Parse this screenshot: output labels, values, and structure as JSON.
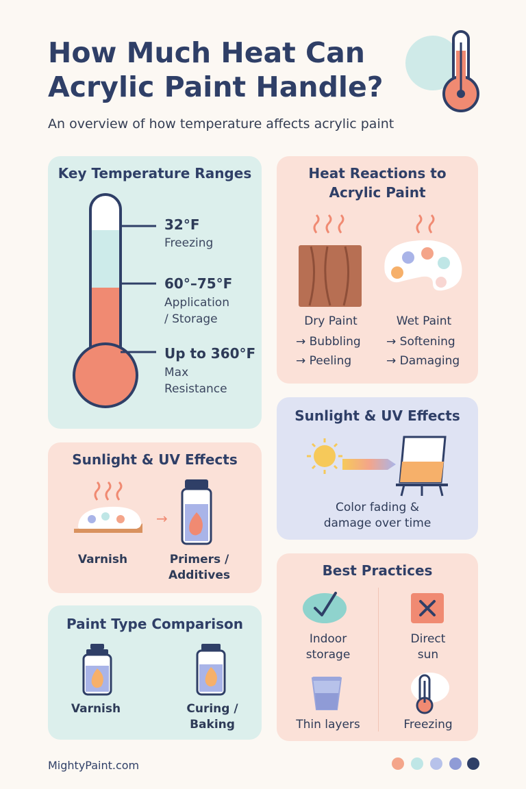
{
  "header": {
    "title_line1": "How Much Heat Can",
    "title_line2": "Acrylic Paint Handle?",
    "subtitle": "An overview of how temperature affects acrylic paint"
  },
  "ranges": {
    "title": "Key Temperature Ranges",
    "items": [
      {
        "value": "32°F",
        "desc": "Freezing"
      },
      {
        "value": "60°–75°F",
        "desc1": "Application",
        "desc2": "/ Storage"
      },
      {
        "value": "Up to 360°F",
        "desc1": "Max",
        "desc2": "Resistance"
      }
    ]
  },
  "reactions": {
    "title1": "Heat Reactions to",
    "title2": "Acrylic Paint",
    "dry": {
      "label": "Dry Paint",
      "effects": [
        "→ Bubbling",
        "→ Peeling"
      ]
    },
    "wet": {
      "label": "Wet Paint",
      "effects": [
        "→ Softening",
        "→ Damaging"
      ]
    }
  },
  "uv_left": {
    "title": "Sunlight & UV Effects",
    "item1": "Varnish",
    "item2_1": "Primers /",
    "item2_2": "Additives",
    "arrow": "→"
  },
  "uv_right": {
    "title": "Sunlight & UV Effects",
    "caption1": "Color fading &",
    "caption2": "damage over time"
  },
  "comparison": {
    "title": "Paint Type Comparison",
    "item1": "Varnish",
    "item2_1": "Curing /",
    "item2_2": "Baking"
  },
  "practices": {
    "title": "Best Practices",
    "items": [
      {
        "l1": "Indoor",
        "l2": "storage",
        "icon": "check-icon"
      },
      {
        "l1": "Direct",
        "l2": "sun",
        "icon": "x-icon"
      },
      {
        "l1": "Thin layers",
        "icon": "cup-icon"
      },
      {
        "l1": "Freezing",
        "icon": "thermometer-icon"
      }
    ]
  },
  "footer": {
    "site": "MightyPaint.com",
    "dot_colors": [
      "#f4a58a",
      "#bfe6e6",
      "#b7c2ea",
      "#8f9bd6",
      "#2f3f67"
    ]
  },
  "colors": {
    "title": "#2f3f67",
    "mint_card": "#dcefec",
    "peach_card": "#fbe1d8",
    "lavender_card": "#dfe3f3",
    "accent_coral": "#f08a72"
  }
}
